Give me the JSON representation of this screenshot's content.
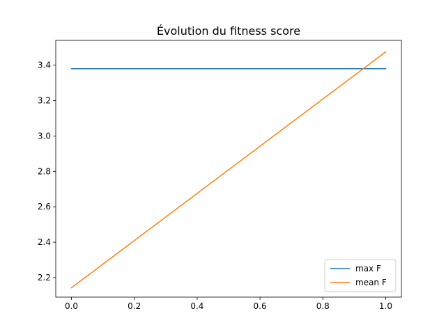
{
  "chart_data": {
    "type": "line",
    "title": "Évolution du fitness score",
    "xlabel": "",
    "ylabel": "",
    "xlim": [
      -0.05,
      1.05
    ],
    "ylim": [
      2.09,
      3.54
    ],
    "xticks": [
      "0.0",
      "0.2",
      "0.4",
      "0.6",
      "0.8",
      "1.0"
    ],
    "xtick_values": [
      0.0,
      0.2,
      0.4,
      0.6,
      0.8,
      1.0
    ],
    "yticks": [
      "2.2",
      "2.4",
      "2.6",
      "2.8",
      "3.0",
      "3.2",
      "3.4"
    ],
    "ytick_values": [
      2.2,
      2.4,
      2.6,
      2.8,
      3.0,
      3.2,
      3.4
    ],
    "grid": false,
    "legend_position": "lower right",
    "series": [
      {
        "name": "max F",
        "color": "#1f77b4",
        "x": [
          0,
          1
        ],
        "y": [
          3.38,
          3.38
        ]
      },
      {
        "name": "mean F",
        "color": "#ff7f0e",
        "x": [
          0,
          1
        ],
        "y": [
          2.143,
          3.475
        ]
      }
    ]
  }
}
